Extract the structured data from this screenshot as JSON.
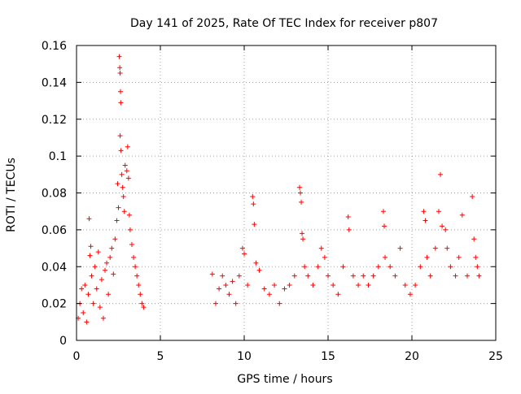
{
  "chart_data": {
    "type": "scatter",
    "title": "Day 141 of 2025, Rate Of TEC Index for receiver p807",
    "xlabel": "GPS time / hours",
    "ylabel": "ROTI / TECUs",
    "xlim": [
      0,
      25
    ],
    "ylim": [
      0,
      0.16
    ],
    "x_ticks": [
      0,
      5,
      10,
      15,
      20,
      25
    ],
    "x_tick_labels": [
      "0",
      "5",
      "10",
      "15",
      "20",
      "25"
    ],
    "y_ticks": [
      0,
      0.02,
      0.04,
      0.06,
      0.08,
      0.1,
      0.12,
      0.14,
      0.16
    ],
    "y_tick_labels": [
      "0",
      "0.02",
      "0.04",
      "0.06",
      "0.08",
      "0.1",
      "0.12",
      "0.14",
      "0.16"
    ],
    "grid": true,
    "marker": "plus",
    "color": "#ff0000",
    "series": [
      {
        "values_note_x": "hours",
        "points": [
          [
            0.1,
            0.012
          ],
          [
            0.2,
            0.02
          ],
          [
            0.3,
            0.028
          ],
          [
            0.4,
            0.015
          ],
          [
            0.5,
            0.03
          ],
          [
            0.6,
            0.01
          ],
          [
            0.7,
            0.025
          ],
          [
            0.75,
            0.066
          ],
          [
            0.8,
            0.046
          ],
          [
            0.85,
            0.051
          ],
          [
            0.9,
            0.035
          ],
          [
            1.0,
            0.02
          ],
          [
            1.1,
            0.04
          ],
          [
            1.2,
            0.028
          ],
          [
            1.3,
            0.048
          ],
          [
            1.4,
            0.018
          ],
          [
            1.5,
            0.033
          ],
          [
            1.6,
            0.012
          ],
          [
            1.7,
            0.038
          ],
          [
            1.8,
            0.042
          ],
          [
            1.9,
            0.025
          ],
          [
            2.0,
            0.045
          ],
          [
            2.1,
            0.05
          ],
          [
            2.2,
            0.036
          ],
          [
            2.3,
            0.055
          ],
          [
            2.4,
            0.065
          ],
          [
            2.45,
            0.085
          ],
          [
            2.5,
            0.072
          ],
          [
            2.55,
            0.154
          ],
          [
            2.58,
            0.148
          ],
          [
            2.6,
            0.145
          ],
          [
            2.62,
            0.135
          ],
          [
            2.64,
            0.129
          ],
          [
            2.6,
            0.111
          ],
          [
            2.65,
            0.103
          ],
          [
            2.7,
            0.09
          ],
          [
            2.75,
            0.083
          ],
          [
            2.8,
            0.078
          ],
          [
            2.85,
            0.07
          ],
          [
            2.9,
            0.095
          ],
          [
            3.0,
            0.092
          ],
          [
            3.05,
            0.105
          ],
          [
            3.1,
            0.088
          ],
          [
            3.15,
            0.068
          ],
          [
            3.2,
            0.06
          ],
          [
            3.3,
            0.052
          ],
          [
            3.4,
            0.045
          ],
          [
            3.5,
            0.04
          ],
          [
            3.6,
            0.035
          ],
          [
            3.7,
            0.03
          ],
          [
            3.8,
            0.025
          ],
          [
            3.9,
            0.02
          ],
          [
            4.0,
            0.018
          ],
          [
            8.1,
            0.036
          ],
          [
            8.3,
            0.02
          ],
          [
            8.5,
            0.028
          ],
          [
            8.7,
            0.035
          ],
          [
            8.9,
            0.03
          ],
          [
            9.1,
            0.025
          ],
          [
            9.3,
            0.032
          ],
          [
            9.5,
            0.02
          ],
          [
            9.7,
            0.035
          ],
          [
            9.9,
            0.05
          ],
          [
            10.0,
            0.047
          ],
          [
            10.2,
            0.03
          ],
          [
            10.5,
            0.078
          ],
          [
            10.55,
            0.074
          ],
          [
            10.6,
            0.063
          ],
          [
            10.7,
            0.042
          ],
          [
            10.9,
            0.038
          ],
          [
            11.2,
            0.028
          ],
          [
            11.5,
            0.025
          ],
          [
            11.8,
            0.03
          ],
          [
            12.1,
            0.02
          ],
          [
            12.4,
            0.028
          ],
          [
            12.7,
            0.03
          ],
          [
            13.0,
            0.035
          ],
          [
            13.3,
            0.083
          ],
          [
            13.35,
            0.08
          ],
          [
            13.4,
            0.075
          ],
          [
            13.45,
            0.058
          ],
          [
            13.5,
            0.055
          ],
          [
            13.6,
            0.04
          ],
          [
            13.8,
            0.035
          ],
          [
            14.1,
            0.03
          ],
          [
            14.4,
            0.04
          ],
          [
            14.6,
            0.05
          ],
          [
            14.8,
            0.045
          ],
          [
            15.0,
            0.035
          ],
          [
            15.3,
            0.03
          ],
          [
            15.6,
            0.025
          ],
          [
            15.9,
            0.04
          ],
          [
            16.2,
            0.067
          ],
          [
            16.25,
            0.06
          ],
          [
            16.5,
            0.035
          ],
          [
            16.8,
            0.03
          ],
          [
            17.1,
            0.035
          ],
          [
            17.4,
            0.03
          ],
          [
            17.7,
            0.035
          ],
          [
            18.0,
            0.04
          ],
          [
            18.3,
            0.07
          ],
          [
            18.35,
            0.062
          ],
          [
            18.4,
            0.045
          ],
          [
            18.7,
            0.04
          ],
          [
            19.0,
            0.035
          ],
          [
            19.3,
            0.05
          ],
          [
            19.6,
            0.03
          ],
          [
            19.9,
            0.025
          ],
          [
            20.2,
            0.03
          ],
          [
            20.5,
            0.04
          ],
          [
            20.7,
            0.07
          ],
          [
            20.8,
            0.065
          ],
          [
            20.9,
            0.045
          ],
          [
            21.1,
            0.035
          ],
          [
            21.4,
            0.05
          ],
          [
            21.6,
            0.07
          ],
          [
            21.7,
            0.09
          ],
          [
            21.8,
            0.062
          ],
          [
            22.0,
            0.06
          ],
          [
            22.1,
            0.05
          ],
          [
            22.3,
            0.04
          ],
          [
            22.6,
            0.035
          ],
          [
            22.8,
            0.045
          ],
          [
            23.0,
            0.068
          ],
          [
            23.3,
            0.035
          ],
          [
            23.6,
            0.078
          ],
          [
            23.7,
            0.055
          ],
          [
            23.8,
            0.045
          ],
          [
            23.9,
            0.04
          ],
          [
            24.0,
            0.035
          ]
        ]
      }
    ]
  }
}
